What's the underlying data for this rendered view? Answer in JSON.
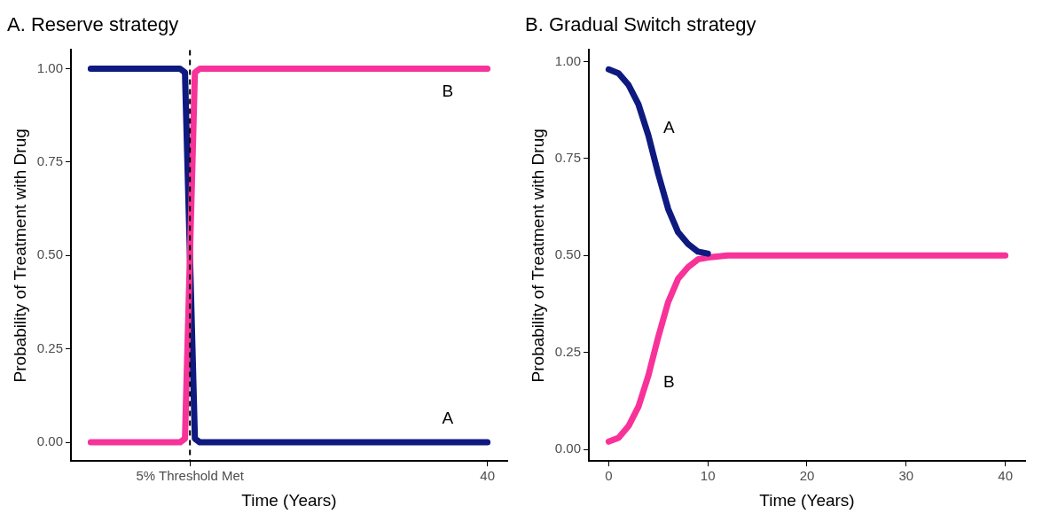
{
  "chart_data": [
    {
      "type": "line",
      "title": "A. Reserve strategy",
      "xlabel": "Time (Years)",
      "ylabel": "Probability of Treatment with Drug",
      "ylim": [
        -0.05,
        1.05
      ],
      "yticks": [
        {
          "value": 0,
          "label": "0.00"
        },
        {
          "value": 0.25,
          "label": "0.25"
        },
        {
          "value": 0.5,
          "label": "0.50"
        },
        {
          "value": 0.75,
          "label": "0.75"
        },
        {
          "value": 1,
          "label": "1.00"
        }
      ],
      "grid": false,
      "legend": false,
      "marker": "none",
      "line_style": "solid",
      "categories": [
        null,
        null,
        null,
        null,
        null,
        null,
        null,
        null,
        null,
        null,
        null,
        null,
        null,
        null,
        null,
        null,
        null,
        null,
        null,
        null,
        "5% Threshold Met",
        null,
        null,
        null,
        null,
        null,
        null,
        null,
        null,
        null,
        null,
        null,
        null,
        null,
        null,
        null,
        null,
        null,
        null,
        null,
        null,
        null,
        null,
        null,
        null,
        null,
        null,
        null,
        null,
        null,
        null,
        null,
        null,
        null,
        null,
        null,
        null,
        null,
        null,
        null,
        null,
        null,
        null,
        null,
        null,
        null,
        null,
        null,
        null,
        null,
        null,
        null,
        null,
        null,
        null,
        null,
        null,
        null,
        null,
        null,
        "40"
      ],
      "series": [
        {
          "name": "B",
          "color": "#f7339a",
          "values": [
            0,
            0,
            0,
            0,
            0,
            0,
            0,
            0,
            0,
            0,
            0,
            0,
            0,
            0,
            0,
            0,
            0,
            0,
            0,
            0.01,
            0.5,
            0.99,
            1,
            1,
            1,
            1,
            1,
            1,
            1,
            1,
            1,
            1,
            1,
            1,
            1,
            1,
            1,
            1,
            1,
            1,
            1,
            1,
            1,
            1,
            1,
            1,
            1,
            1,
            1,
            1,
            1,
            1,
            1,
            1,
            1,
            1,
            1,
            1,
            1,
            1,
            1,
            1,
            1,
            1,
            1,
            1,
            1,
            1,
            1,
            1,
            1,
            1,
            1,
            1,
            1,
            1,
            1,
            1,
            1,
            1,
            1
          ]
        },
        {
          "name": "A",
          "color": "#0f1a80",
          "values": [
            1,
            1,
            1,
            1,
            1,
            1,
            1,
            1,
            1,
            1,
            1,
            1,
            1,
            1,
            1,
            1,
            1,
            1,
            1,
            0.99,
            0.5,
            0.01,
            0,
            0,
            0,
            0,
            0,
            0,
            0,
            0,
            0,
            0,
            0,
            0,
            0,
            0,
            0,
            0,
            0,
            0,
            0,
            0,
            0,
            0,
            0,
            0,
            0,
            0,
            0,
            0,
            0,
            0,
            0,
            0,
            0,
            0,
            0,
            0,
            0,
            0,
            0,
            0,
            0,
            0,
            0,
            0,
            0,
            0,
            0,
            0,
            0,
            0,
            0,
            0,
            0,
            0,
            0,
            0,
            0,
            0,
            0
          ]
        }
      ],
      "ref_lines": [
        {
          "axis": "x",
          "value": "5% Threshold Met",
          "color": "#000000",
          "line_style": "dashed"
        }
      ]
    },
    {
      "type": "line",
      "title": "B. Gradual Switch strategy",
      "xlabel": "Time (Years)",
      "ylabel": "Probability of Treatment with Drug",
      "xlim": [
        -2,
        42
      ],
      "ylim": [
        -0.03,
        1.03
      ],
      "xticks": [
        0,
        10,
        20,
        30,
        40
      ],
      "yticks": [
        {
          "value": 0,
          "label": "0.00"
        },
        {
          "value": 0.25,
          "label": "0.25"
        },
        {
          "value": 0.5,
          "label": "0.50"
        },
        {
          "value": 0.75,
          "label": "0.75"
        },
        {
          "value": 1,
          "label": "1.00"
        }
      ],
      "grid": false,
      "legend": false,
      "marker": "none",
      "line_style": "solid",
      "x": [
        0,
        1,
        2,
        3,
        4,
        5,
        6,
        7,
        8,
        9,
        10,
        12,
        15,
        20,
        30,
        40
      ],
      "series": [
        {
          "name": "A",
          "color": "#0f1a80",
          "values": [
            0.98,
            0.97,
            0.94,
            0.89,
            0.81,
            0.71,
            0.62,
            0.56,
            0.53,
            0.51,
            0.505,
            null,
            null,
            null,
            null,
            null
          ]
        },
        {
          "name": "B",
          "color": "#f7339a",
          "values": [
            0.02,
            0.03,
            0.06,
            0.11,
            0.19,
            0.29,
            0.38,
            0.44,
            0.47,
            0.49,
            0.495,
            0.5,
            0.5,
            0.5,
            0.5,
            0.5
          ]
        }
      ]
    }
  ]
}
